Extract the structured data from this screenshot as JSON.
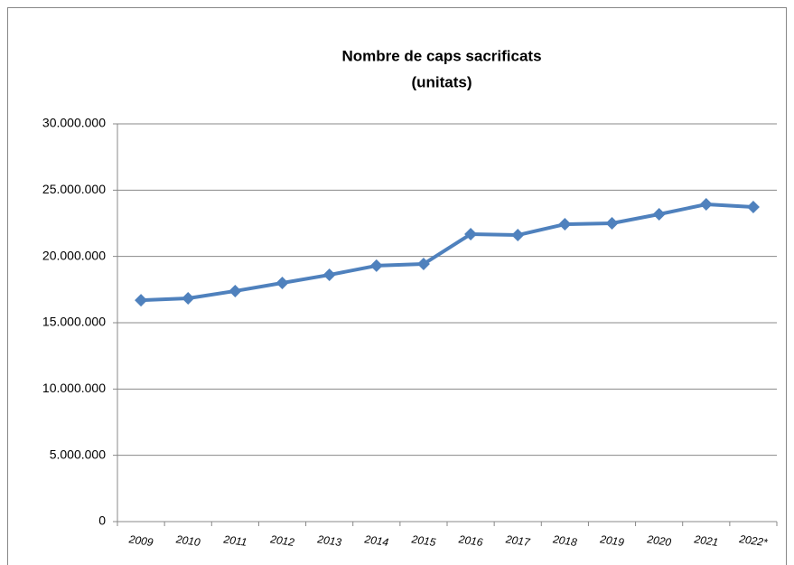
{
  "chart_data": {
    "type": "line",
    "title": "Nombre de caps sacrificats",
    "subtitle": "(unitats)",
    "categories": [
      "2009",
      "2010",
      "2011",
      "2012",
      "2013",
      "2014",
      "2015",
      "2016",
      "2017",
      "2018",
      "2019",
      "2020",
      "2021",
      "2022*"
    ],
    "values": [
      16700000,
      16840000,
      17390000,
      18000000,
      18610000,
      19300000,
      19430000,
      21680000,
      21610000,
      22430000,
      22500000,
      23180000,
      23930000,
      23730000
    ],
    "color": "#4f81bd",
    "ylim": [
      0,
      30000000
    ],
    "yticks": [
      0,
      {
        "value": 5000000,
        "label": "5.000.000"
      },
      {
        "value": 10000000,
        "label": "10.000.000"
      },
      {
        "value": 15000000,
        "label": "15.000.000"
      },
      {
        "value": 20000000,
        "label": "20.000.000"
      },
      {
        "value": 25000000,
        "label": "25.000.000"
      },
      {
        "value": 30000000,
        "label": "30.000.000"
      }
    ],
    "grid": true
  }
}
